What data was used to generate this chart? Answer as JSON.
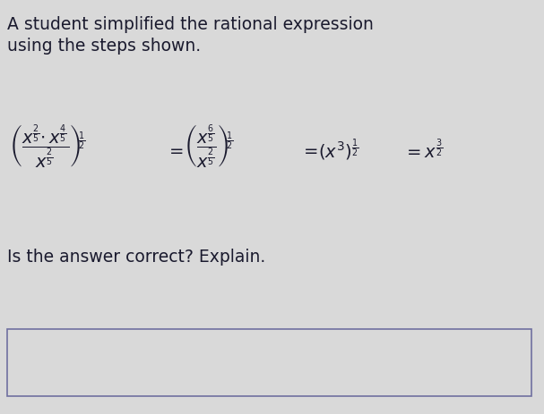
{
  "title_line1": "A student simplified the rational expression",
  "title_line2": "using the steps shown.",
  "question": "Is the answer correct? Explain.",
  "bg_color": "#d9d9d9",
  "text_color": "#1a1a2e",
  "answer_box_bg": "#d9d9d9",
  "answer_box_edge": "#7070a0",
  "figsize": [
    6.07,
    4.63
  ],
  "dpi": 100
}
